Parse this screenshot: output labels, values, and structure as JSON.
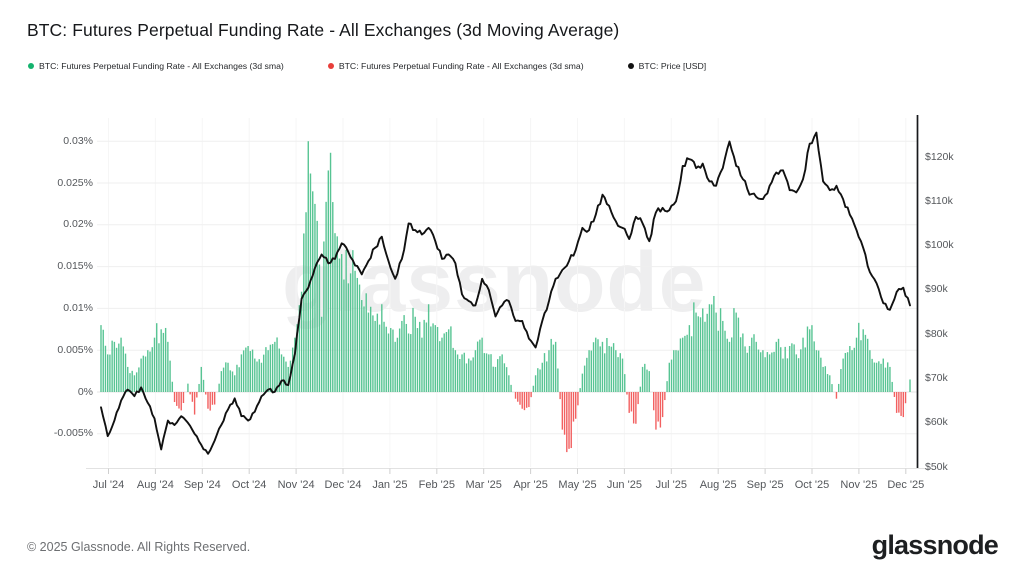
{
  "header": {
    "title": "BTC: Futures Perpetual Funding Rate - All Exchanges (3d Moving Average)"
  },
  "legend": [
    {
      "label": "BTC: Futures Perpetual Funding Rate - All Exchanges (3d sma)",
      "color": "#14b36e"
    },
    {
      "label": "BTC: Futures Perpetual Funding Rate - All Exchanges (3d sma)",
      "color": "#e83e3a"
    },
    {
      "label": "BTC: Price [USD]",
      "color": "#111111"
    }
  ],
  "watermark": "glassnode",
  "footer": {
    "copyright": "© 2025 Glassnode. All Rights Reserved.",
    "logo": "glassnode"
  },
  "chart_data": {
    "type": "mixed",
    "subtype": "bar+line dual-axis time series",
    "title": "BTC: Futures Perpetual Funding Rate - All Exchanges (3d Moving Average)",
    "legend_position": "top",
    "grid": true,
    "x_start": "Jul 2024",
    "x_end": "Dec 2025",
    "x_tick_labels": [
      "Jul '24",
      "Aug '24",
      "Sep '24",
      "Oct '24",
      "Nov '24",
      "Dec '24",
      "Jan '25",
      "Feb '25",
      "Mar '25",
      "Apr '25",
      "May '25",
      "Jun '25",
      "Jul '25",
      "Aug '25",
      "Sep '25",
      "Oct '25",
      "Nov '25",
      "Dec '25"
    ],
    "points_per_month": 7,
    "left_axis": {
      "name": "funding rate",
      "unit": "%",
      "ticks": [
        "0.03%",
        "0.025%",
        "0.02%",
        "0.015%",
        "0.01%",
        "0.005%",
        "0%",
        "-0.005%"
      ],
      "tick_values": [
        0.03,
        0.025,
        0.02,
        0.015,
        0.01,
        0.005,
        0,
        -0.005
      ],
      "range": [
        -0.0085,
        0.0325
      ]
    },
    "right_axis": {
      "name": "BTC price",
      "unit": "USD",
      "ticks": [
        "$120k",
        "$110k",
        "$100k",
        "$90k",
        "$80k",
        "$70k",
        "$60k",
        "$50k"
      ],
      "tick_values": [
        120,
        110,
        100,
        90,
        80,
        70,
        60,
        50
      ],
      "range_k": [
        49,
        129
      ]
    },
    "series": [
      {
        "name": "BTC: Futures Perpetual Funding Rate - All Exchanges (3d sma)",
        "type": "bar",
        "axis": "left",
        "unit": "%",
        "color_positive": "#57c493",
        "color_negative": "#f26060",
        "values": [
          0.008,
          0.0045,
          0.006,
          0.0065,
          0.003,
          0.002,
          0.004,
          0.005,
          0.0065,
          0.0075,
          0.006,
          -0.0012,
          -0.0022,
          0.001,
          -0.0027,
          0.003,
          -0.002,
          -0.0015,
          0.0025,
          0.0035,
          0.002,
          0.0045,
          0.0055,
          0.004,
          0.0035,
          0.005,
          0.006,
          0.0045,
          0.003,
          0.0065,
          0.012,
          0.03,
          0.0225,
          0.009,
          0.0265,
          0.019,
          0.0165,
          0.013,
          0.0145,
          0.011,
          0.0095,
          0.0085,
          0.0105,
          0.007,
          0.006,
          0.0085,
          0.007,
          0.009,
          0.0065,
          0.0105,
          0.008,
          0.0065,
          0.0075,
          0.005,
          0.0045,
          0.004,
          0.005,
          0.0065,
          0.0045,
          0.003,
          0.0045,
          0.002,
          -0.0008,
          -0.002,
          -0.0018,
          0.002,
          0.0035,
          0.005,
          0.006,
          -0.0045,
          -0.0068,
          -0.0032,
          0.0022,
          0.005,
          0.0065,
          0.006,
          0.0055,
          0.005,
          0.004,
          -0.0025,
          -0.0038,
          0.003,
          0.0025,
          -0.0045,
          -0.003,
          0.0035,
          0.005,
          0.0065,
          0.008,
          0.0095,
          0.01,
          0.0105,
          0.0095,
          0.0085,
          0.006,
          0.0095,
          0.007,
          0.0055,
          0.006,
          0.005,
          0.0045,
          0.006,
          0.004,
          0.0055,
          0.0045,
          0.0065,
          0.0075,
          0.005,
          0.003,
          0.002,
          -0.0008,
          0.004,
          0.0055,
          0.0065,
          0.0075,
          0.005,
          0.0035,
          0.004,
          0.003,
          -0.0025,
          -0.003,
          0.0015
        ]
      },
      {
        "name": "BTC: Price [USD]",
        "type": "line",
        "axis": "right",
        "unit": "k USD",
        "color": "#111111",
        "values": [
          63.5,
          57,
          60.5,
          65,
          67.5,
          66,
          68,
          64.5,
          61,
          54,
          60.5,
          59.5,
          61.5,
          60,
          57.5,
          55,
          53,
          56,
          59.5,
          63,
          65.5,
          61.5,
          60.5,
          62.5,
          66,
          67.5,
          67,
          69.5,
          68.5,
          75.5,
          88,
          90.5,
          95,
          98,
          96,
          97,
          100.5,
          98.5,
          95.5,
          93.5,
          96.5,
          99.5,
          102,
          96.5,
          92.5,
          97,
          105,
          103.5,
          102.5,
          104,
          101,
          97,
          98,
          96,
          89,
          87.5,
          86.5,
          92.5,
          90,
          84,
          86.5,
          87.5,
          83,
          83,
          79,
          77,
          83,
          87.5,
          92.5,
          94.5,
          96.5,
          99,
          104,
          103.5,
          107,
          111.5,
          109,
          105.5,
          104,
          101.5,
          106.5,
          105,
          101,
          107.5,
          108.5,
          108,
          110,
          118,
          119.5,
          117.5,
          118.5,
          114.5,
          113.5,
          117.5,
          123.5,
          118,
          115,
          111.5,
          111,
          110.5,
          113.5,
          116.5,
          117,
          112.5,
          112,
          115,
          123,
          125.5,
          114.5,
          112.5,
          113.5,
          110.5,
          107,
          103.5,
          99.5,
          94,
          91.5,
          87,
          85.5,
          89.5,
          90.5,
          86.5
        ]
      }
    ]
  }
}
